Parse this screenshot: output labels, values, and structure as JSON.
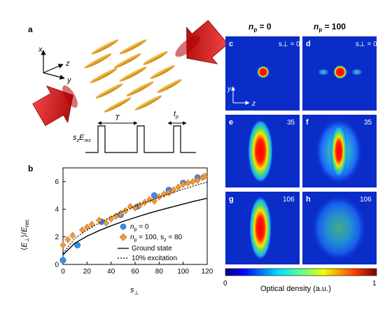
{
  "panel_a": {
    "letter": "a",
    "axes": {
      "x": "x",
      "y": "y",
      "z": "z"
    },
    "pulse": {
      "period": "T",
      "pulse_width": "t",
      "pulse_width_sub": "p",
      "height": "s",
      "height_sub": "z",
      "height_rest": "E",
      "height_rest_sub": "rec"
    }
  },
  "panel_b": {
    "letter": "b",
    "legend": [
      {
        "label": "n",
        "sub": "p",
        "rest": " = 0",
        "marker": "circle",
        "color": "#3a8fe8"
      },
      {
        "label": "n",
        "sub": "p",
        "rest": " = 100, s",
        "sub2": "z",
        "rest2": " = 80",
        "marker": "diamond",
        "color": "#f39a3a"
      },
      {
        "label": "Ground state",
        "marker": "solid-line",
        "color": "#000000"
      },
      {
        "label": "10% excitation",
        "marker": "dotted-line",
        "color": "#000000"
      }
    ]
  },
  "chart_data": {
    "type": "scatter",
    "xlabel": "s⊥",
    "ylabel": "⟨E⊥⟩/Erec",
    "xlim": [
      0,
      120
    ],
    "ylim": [
      0,
      7
    ],
    "xticks": [
      0,
      20,
      40,
      60,
      80,
      100,
      120
    ],
    "yticks": [
      0,
      2,
      4,
      6
    ],
    "series": [
      {
        "name": "n_p = 0",
        "marker": "circle",
        "color": "#3a8fe8",
        "x": [
          0,
          12,
          32,
          48,
          62,
          76,
          88,
          100,
          112
        ],
        "y": [
          0.3,
          1.4,
          3.1,
          3.6,
          4.2,
          5.0,
          5.4,
          5.9,
          6.3
        ]
      },
      {
        "name": "n_p = 100, s_z = 80",
        "marker": "diamond",
        "color": "#f39a3a",
        "x": [
          0,
          4,
          8,
          16,
          20,
          24,
          30,
          36,
          40,
          44,
          48,
          52,
          56,
          60,
          64,
          68,
          72,
          76,
          80,
          84,
          88,
          92,
          96,
          100,
          104,
          108,
          112,
          116,
          118
        ],
        "y": [
          1.4,
          1.8,
          2.1,
          2.5,
          2.7,
          2.9,
          3.2,
          3.0,
          3.3,
          3.5,
          3.7,
          3.9,
          4.2,
          4.1,
          4.3,
          4.5,
          4.7,
          4.6,
          4.9,
          5.1,
          5.2,
          5.4,
          5.6,
          5.8,
          5.9,
          6.0,
          6.1,
          6.3,
          6.4
        ]
      },
      {
        "name": "Ground state",
        "line": "solid",
        "color": "#000000",
        "x": [
          0,
          10,
          20,
          30,
          40,
          50,
          60,
          70,
          80,
          90,
          100,
          110,
          120
        ],
        "y": [
          0.7,
          1.55,
          2.05,
          2.45,
          2.8,
          3.12,
          3.4,
          3.67,
          3.92,
          4.15,
          4.38,
          4.6,
          4.8
        ]
      },
      {
        "name": "10% excitation",
        "line": "dotted",
        "color": "#000000",
        "x": [
          0,
          10,
          20,
          30,
          40,
          50,
          60,
          70,
          80,
          90,
          100,
          110,
          120
        ],
        "y": [
          0.8,
          1.9,
          2.5,
          3.0,
          3.45,
          3.85,
          4.22,
          4.55,
          4.87,
          5.17,
          5.45,
          5.72,
          5.97
        ]
      }
    ]
  },
  "images": {
    "column_headers": [
      {
        "label": "n",
        "sub": "p",
        "rest": " = 0"
      },
      {
        "label": "n",
        "sub": "p",
        "rest": " = 100"
      }
    ],
    "panels": [
      {
        "letter": "c",
        "value": "s⊥ = 0",
        "cloud": "small"
      },
      {
        "letter": "d",
        "value": "s⊥ = 0",
        "cloud": "small-wings"
      },
      {
        "letter": "e",
        "value": "35",
        "cloud": "elongated"
      },
      {
        "letter": "f",
        "value": "35",
        "cloud": "elongated-wide"
      },
      {
        "letter": "g",
        "value": "106",
        "cloud": "elongated"
      },
      {
        "letter": "h",
        "value": "106",
        "cloud": "diffuse"
      }
    ],
    "axes": {
      "y": "y",
      "z": "z"
    },
    "colorbar": {
      "min": "0",
      "max": "1",
      "label": "Optical density (a.u.)"
    }
  }
}
